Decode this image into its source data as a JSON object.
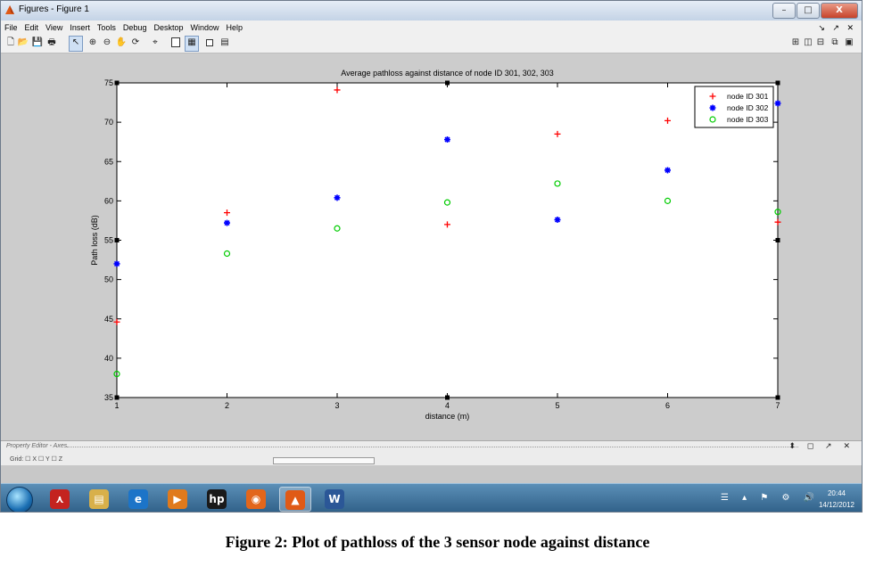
{
  "window": {
    "title": "Figures - Figure 1",
    "buttons": {
      "minimize": "–",
      "maximize": "□",
      "close": "X"
    }
  },
  "menubar": {
    "items": [
      "File",
      "Edit",
      "View",
      "Insert",
      "Tools",
      "Debug",
      "Desktop",
      "Window",
      "Help"
    ],
    "dock_controls": "↘ ↗ ✕"
  },
  "toolbar": {
    "icons": [
      "new-figure-icon",
      "open-file-icon",
      "save-icon",
      "print-icon",
      "edit-plot-icon",
      "zoom-in-icon",
      "zoom-out-icon",
      "pan-icon",
      "rotate-icon",
      "data-cursor-icon",
      "colorbar-icon",
      "legend-icon",
      "hide-plot-tools-icon",
      "show-plot-tools-icon"
    ],
    "layout_icons": [
      "tile-layout-icon",
      "left-right-layout-icon",
      "top-bottom-layout-icon",
      "float-icon",
      "maximize-layout-icon"
    ]
  },
  "chart_data": {
    "type": "scatter",
    "title": "Average pathloss against distance of node ID 301, 302, 303",
    "xlabel": "distance (m)",
    "ylabel": "Path loss (dB)",
    "xlim": [
      1,
      7
    ],
    "ylim": [
      35,
      75
    ],
    "xticks": [
      1,
      2,
      3,
      4,
      5,
      6,
      7
    ],
    "yticks": [
      35,
      40,
      45,
      50,
      55,
      60,
      65,
      70,
      75
    ],
    "grid": false,
    "legend_position": "top-right",
    "series": [
      {
        "name": "node ID 301",
        "marker": "+",
        "color": "#ff0000",
        "x": [
          1,
          2,
          3,
          4,
          5,
          6,
          7
        ],
        "y": [
          44.6,
          58.5,
          74.1,
          57.0,
          68.5,
          70.2,
          57.3
        ]
      },
      {
        "name": "node ID 302",
        "marker": "*",
        "color": "#0000ff",
        "x": [
          1,
          2,
          3,
          4,
          5,
          6,
          7
        ],
        "y": [
          52.0,
          57.2,
          60.4,
          67.8,
          57.6,
          63.9,
          72.4
        ]
      },
      {
        "name": "node ID 303",
        "marker": "o",
        "color": "#00cc00",
        "x": [
          1,
          2,
          3,
          4,
          5,
          6,
          7
        ],
        "y": [
          38.0,
          53.3,
          56.5,
          59.8,
          62.2,
          60.0,
          58.6
        ]
      }
    ]
  },
  "property_editor": {
    "title": "Property Editor - Axes",
    "controls": "⬍ ◻ ↗ ✕",
    "grid_label": "Grid:  ☐ X  ☐ Y  ☐ Z"
  },
  "taskbar": {
    "apps": [
      {
        "name": "acrobat-icon",
        "glyph": "⋏",
        "color": "#c4231f",
        "active": false
      },
      {
        "name": "explorer-icon",
        "glyph": "▤",
        "color": "#d8b04a",
        "active": false
      },
      {
        "name": "ie-icon",
        "glyph": "e",
        "color": "#1c74c8",
        "active": false
      },
      {
        "name": "media-player-icon",
        "glyph": "▶",
        "color": "#e07a1c",
        "active": false
      },
      {
        "name": "hp-icon",
        "glyph": "hp",
        "color": "#1a1a1a",
        "active": false
      },
      {
        "name": "firefox-icon",
        "glyph": "◉",
        "color": "#e2661b",
        "active": false
      },
      {
        "name": "matlab-icon",
        "glyph": "▲",
        "color": "#e05a16",
        "active": true
      },
      {
        "name": "word-icon",
        "glyph": "W",
        "color": "#2b5797",
        "active": false
      }
    ],
    "tray_icons": "☰ ▴ ⚑ ⚙ 🔊",
    "time": "20:44",
    "date": "14/12/2012"
  },
  "caption": "Figure 2: Plot of pathloss of the 3 sensor node against distance"
}
